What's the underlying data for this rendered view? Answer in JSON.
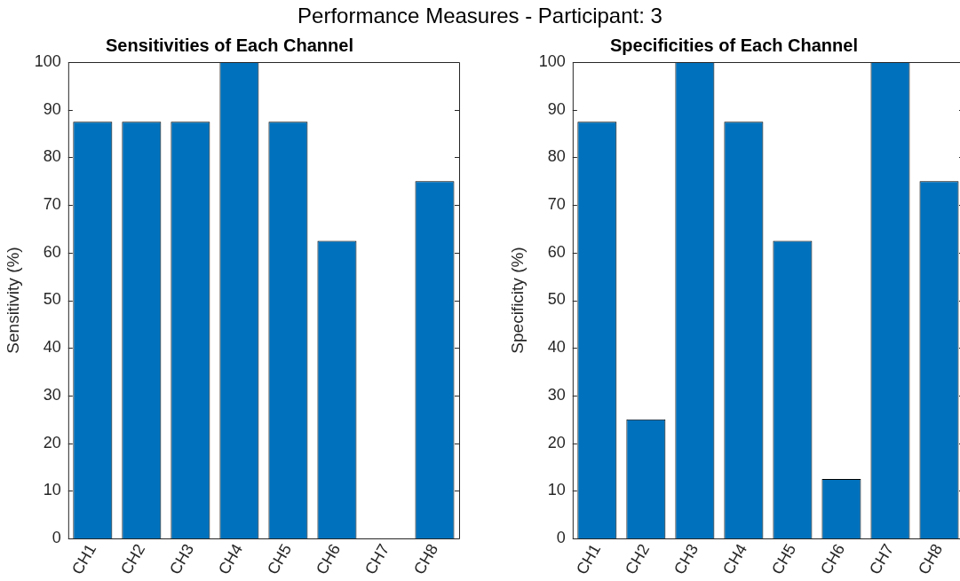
{
  "chart_data": [
    {
      "type": "bar",
      "title": "Sensitivities of Each Channel",
      "ylabel": "Sensitivity (%)",
      "annotations": [
        "Performance Measures - Participant: 3"
      ],
      "categories": [
        "CH1",
        "CH2",
        "CH3",
        "CH4",
        "CH5",
        "CH6",
        "CH7",
        "CH8"
      ],
      "values": [
        87.5,
        87.5,
        87.5,
        100,
        87.5,
        62.5,
        0,
        75
      ],
      "color": "#0072bd",
      "ylim": [
        0,
        100
      ],
      "yticks": [
        0,
        10,
        20,
        30,
        40,
        50,
        60,
        70,
        80,
        90,
        100
      ],
      "grid": false,
      "legend": false
    },
    {
      "type": "bar",
      "title": "Specificities of Each Channel",
      "ylabel": "Specificity (%)",
      "categories": [
        "CH1",
        "CH2",
        "CH3",
        "CH4",
        "CH5",
        "CH6",
        "CH7",
        "CH8"
      ],
      "values": [
        87.5,
        25,
        100,
        87.5,
        62.5,
        12.5,
        100,
        75
      ],
      "color": "#0072bd",
      "ylim": [
        0,
        100
      ],
      "yticks": [
        0,
        10,
        20,
        30,
        40,
        50,
        60,
        70,
        80,
        90,
        100
      ],
      "grid": false,
      "legend": false
    }
  ]
}
